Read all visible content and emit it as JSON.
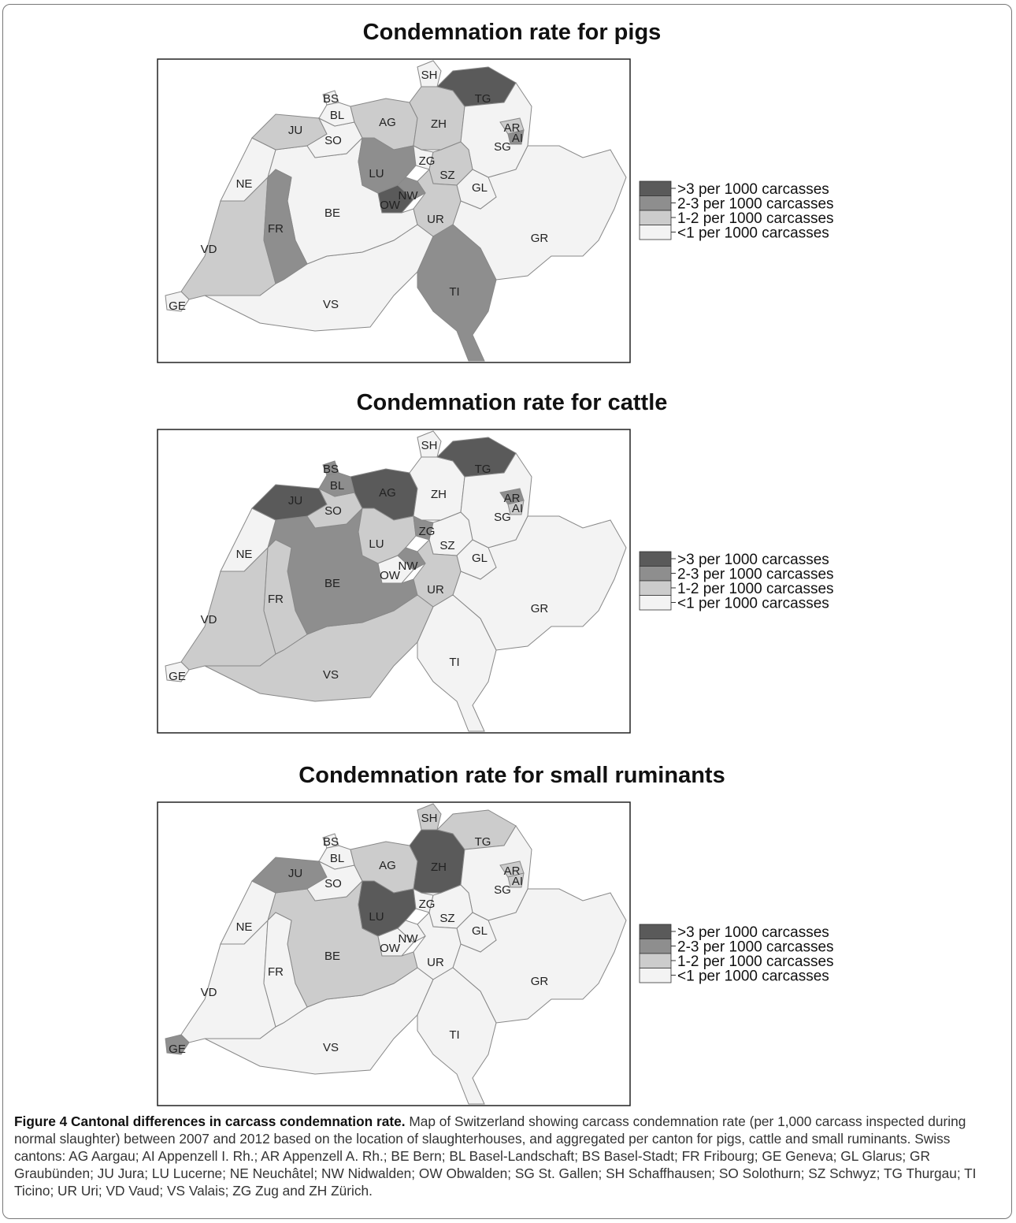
{
  "legend": [
    {
      "label": ">3 per 1000 carcasses",
      "color": "#5a5a5a"
    },
    {
      "label": "2-3 per 1000 carcasses",
      "color": "#8e8e8e"
    },
    {
      "label": "1-2 per 1000 carcasses",
      "color": "#cccccc"
    },
    {
      "label": "<1 per 1000 carcasses",
      "color": "#f3f3f3"
    }
  ],
  "maps": [
    {
      "title": "Condemnation rate for pigs",
      "regions": [
        {
          "label": "VS",
          "color": "#f3f3f3"
        },
        {
          "label": "BE",
          "color": "#f3f3f3"
        },
        {
          "label": "GR",
          "color": "#f3f3f3"
        },
        {
          "label": "VD",
          "color": "#cccccc"
        },
        {
          "label": "FR",
          "color": "#8e8e8e"
        },
        {
          "label": "NE",
          "color": "#f3f3f3"
        },
        {
          "label": "JU",
          "color": "#cccccc"
        },
        {
          "label": "SO",
          "color": "#f3f3f3"
        },
        {
          "label": "BL",
          "color": "#f3f3f3"
        },
        {
          "label": "BS",
          "color": "#f3f3f3"
        },
        {
          "label": "AG",
          "color": "#cccccc"
        },
        {
          "label": "ZH",
          "color": "#cccccc"
        },
        {
          "label": "SH",
          "color": "#f3f3f3"
        },
        {
          "label": "TG",
          "color": "#5a5a5a"
        },
        {
          "label": "SG",
          "color": "#f3f3f3"
        },
        {
          "label": "AR",
          "color": "#cccccc"
        },
        {
          "label": "AI",
          "color": "#8e8e8e"
        },
        {
          "label": "LU",
          "color": "#8e8e8e"
        },
        {
          "label": "ZG",
          "color": "#f3f3f3"
        },
        {
          "label": "SZ",
          "color": "#cccccc"
        },
        {
          "label": "GL",
          "color": "#f3f3f3"
        },
        {
          "label": "UR",
          "color": "#cccccc"
        },
        {
          "label": "OW",
          "color": "#5a5a5a"
        },
        {
          "label": "NW",
          "color": "#8e8e8e"
        },
        {
          "label": "TI",
          "color": "#8e8e8e"
        },
        {
          "label": "GE",
          "color": "#f3f3f3"
        }
      ]
    },
    {
      "title": "Condemnation rate for cattle",
      "regions": [
        {
          "label": "VS",
          "color": "#cccccc"
        },
        {
          "label": "BE",
          "color": "#8e8e8e"
        },
        {
          "label": "GR",
          "color": "#f3f3f3"
        },
        {
          "label": "VD",
          "color": "#cccccc"
        },
        {
          "label": "FR",
          "color": "#cccccc"
        },
        {
          "label": "NE",
          "color": "#f3f3f3"
        },
        {
          "label": "JU",
          "color": "#5a5a5a"
        },
        {
          "label": "SO",
          "color": "#cccccc"
        },
        {
          "label": "BL",
          "color": "#8e8e8e"
        },
        {
          "label": "BS",
          "color": "#8e8e8e"
        },
        {
          "label": "AG",
          "color": "#5a5a5a"
        },
        {
          "label": "ZH",
          "color": "#f3f3f3"
        },
        {
          "label": "SH",
          "color": "#f3f3f3"
        },
        {
          "label": "TG",
          "color": "#5a5a5a"
        },
        {
          "label": "SG",
          "color": "#f3f3f3"
        },
        {
          "label": "AR",
          "color": "#8e8e8e"
        },
        {
          "label": "AI",
          "color": "#cccccc"
        },
        {
          "label": "LU",
          "color": "#cccccc"
        },
        {
          "label": "ZG",
          "color": "#8e8e8e"
        },
        {
          "label": "SZ",
          "color": "#f3f3f3"
        },
        {
          "label": "GL",
          "color": "#f3f3f3"
        },
        {
          "label": "UR",
          "color": "#cccccc"
        },
        {
          "label": "OW",
          "color": "#f3f3f3"
        },
        {
          "label": "NW",
          "color": "#8e8e8e"
        },
        {
          "label": "TI",
          "color": "#f3f3f3"
        },
        {
          "label": "GE",
          "color": "#f3f3f3"
        }
      ]
    },
    {
      "title": "Condemnation rate for small ruminants",
      "regions": [
        {
          "label": "VS",
          "color": "#f3f3f3"
        },
        {
          "label": "BE",
          "color": "#cccccc"
        },
        {
          "label": "GR",
          "color": "#f3f3f3"
        },
        {
          "label": "VD",
          "color": "#f3f3f3"
        },
        {
          "label": "FR",
          "color": "#f3f3f3"
        },
        {
          "label": "NE",
          "color": "#f3f3f3"
        },
        {
          "label": "JU",
          "color": "#8e8e8e"
        },
        {
          "label": "SO",
          "color": "#f3f3f3"
        },
        {
          "label": "BL",
          "color": "#f3f3f3"
        },
        {
          "label": "BS",
          "color": "#f3f3f3"
        },
        {
          "label": "AG",
          "color": "#cccccc"
        },
        {
          "label": "ZH",
          "color": "#5a5a5a"
        },
        {
          "label": "SH",
          "color": "#cccccc"
        },
        {
          "label": "TG",
          "color": "#cccccc"
        },
        {
          "label": "SG",
          "color": "#f3f3f3"
        },
        {
          "label": "AR",
          "color": "#cccccc"
        },
        {
          "label": "AI",
          "color": "#cccccc"
        },
        {
          "label": "LU",
          "color": "#5a5a5a"
        },
        {
          "label": "ZG",
          "color": "#f3f3f3"
        },
        {
          "label": "SZ",
          "color": "#f3f3f3"
        },
        {
          "label": "GL",
          "color": "#f3f3f3"
        },
        {
          "label": "UR",
          "color": "#f3f3f3"
        },
        {
          "label": "OW",
          "color": "#f3f3f3"
        },
        {
          "label": "NW",
          "color": "#f3f3f3"
        },
        {
          "label": "TI",
          "color": "#f3f3f3"
        },
        {
          "label": "GE",
          "color": "#8e8e8e"
        }
      ]
    }
  ],
  "caption": {
    "title": "Figure 4 Cantonal differences in carcass condemnation rate.",
    "text": "Map of Switzerland showing carcass condemnation rate (per 1,000 carcass inspected during normal slaughter) between 2007 and 2012 based on the location of slaughterhouses, and aggregated per canton for pigs, cattle and small ruminants. Swiss cantons: AG Aargau; AI Appenzell I. Rh.; AR Appenzell A. Rh.; BE  Bern; BL Basel-Landschaft; BS Basel-Stadt; FR Fribourg; GE Geneva; GL Glarus; GR Graubünden; JU Jura; LU Lucerne; NE Neuchâtel; NW Nidwalden; OW Obwalden; SG St. Gallen; SH Schaffhausen; SO Solothurn; SZ Schwyz; TG Thurgau; TI Ticino; UR Uri; VD Vaud; VS Valais; ZG Zug and ZH Zürich."
  }
}
